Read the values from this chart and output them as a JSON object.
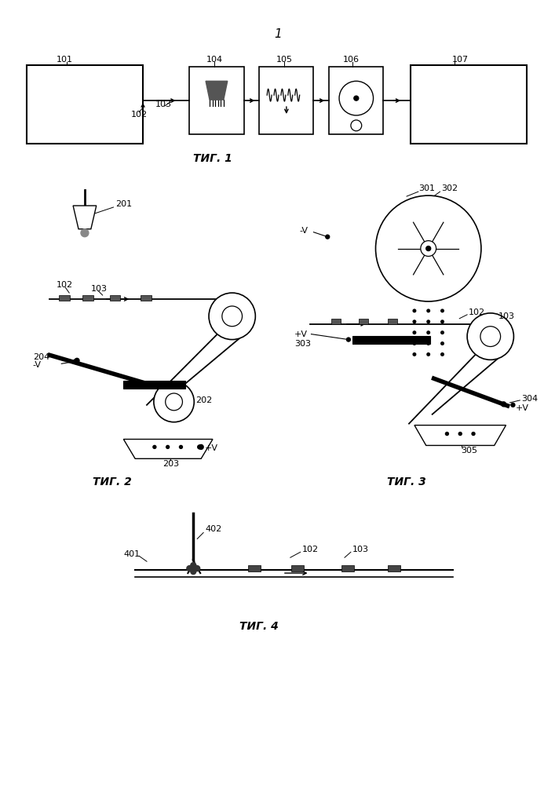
{
  "title_1": "1",
  "fig1_caption": "ΤИГ. 1",
  "fig2_caption": "ΤИГ. 2",
  "fig3_caption": "ΤИГ. 3",
  "fig4_caption": "ΤИГ. 4",
  "bg_color": "#ffffff"
}
